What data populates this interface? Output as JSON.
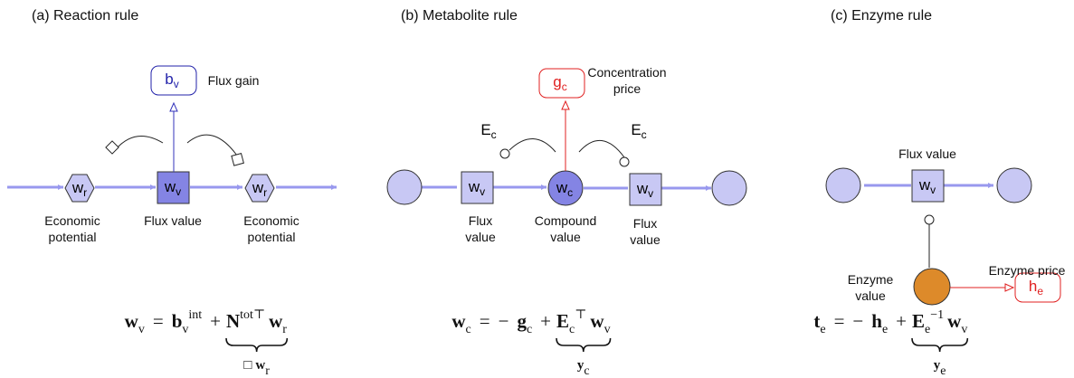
{
  "panels": [
    {
      "title": "(a) Reaction rule",
      "nodes": [
        {
          "main": "w",
          "sub": "r"
        },
        {
          "main": "w",
          "sub": "v"
        },
        {
          "main": "w",
          "sub": "r"
        },
        {
          "main": "b",
          "sub": "v"
        }
      ],
      "labels": [
        [
          "Flux gain"
        ],
        [
          "Economic",
          "potential"
        ],
        [
          "Flux value"
        ],
        [
          "Economic",
          "potential"
        ]
      ],
      "formula": {
        "terms": [
          {
            "text": "w",
            "sub": "v"
          },
          {
            "text": "="
          },
          {
            "text": "b",
            "sub": "v",
            "sup": "int"
          },
          {
            "text": "+"
          }
        ],
        "braced": [
          {
            "text": "N",
            "sup": "tot⊤"
          },
          {
            "text": "w",
            "sub": "r"
          }
        ],
        "below": [
          {
            "text": "□"
          },
          {
            "text": "w",
            "sub": "r"
          }
        ]
      }
    },
    {
      "title": "(b) Metabolite rule",
      "nodes": [
        {
          "main": "g",
          "sub": "c"
        },
        {
          "main": "E",
          "sub": "c"
        },
        {
          "main": "E",
          "sub": "c"
        },
        {
          "main": "w",
          "sub": "v"
        },
        {
          "main": "w",
          "sub": "c"
        },
        {
          "main": "w",
          "sub": "v"
        }
      ],
      "labels": [
        [
          "Concentration",
          "price"
        ],
        [
          "Flux",
          "value"
        ],
        [
          "Compound",
          "value"
        ],
        [
          "Flux",
          "value"
        ]
      ],
      "formula": {
        "terms": [
          {
            "text": "w",
            "sub": "c"
          },
          {
            "text": "="
          },
          {
            "text": "−"
          },
          {
            "text": "g",
            "sub": "c"
          },
          {
            "text": "+"
          }
        ],
        "braced": [
          {
            "text": "E",
            "sub": "c",
            "sup": "⊤"
          },
          {
            "text": "w",
            "sub": "v"
          }
        ],
        "below": [
          {
            "text": "y",
            "sub": "c"
          }
        ]
      }
    },
    {
      "title": "(c) Enzyme rule",
      "nodes": [
        {
          "main": "w",
          "sub": "v"
        },
        {
          "main": "h",
          "sub": "e"
        }
      ],
      "labels": [
        [
          "Flux value"
        ],
        [
          "Enzyme",
          "value"
        ],
        [
          "Enzyme price"
        ]
      ],
      "formula": {
        "terms": [
          {
            "text": "t",
            "sub": "e"
          },
          {
            "text": "="
          },
          {
            "text": "−"
          },
          {
            "text": "h",
            "sub": "e"
          },
          {
            "text": "+"
          }
        ],
        "braced": [
          {
            "text": "E",
            "sub": "e",
            "sup": "−1"
          },
          {
            "text": "w",
            "sub": "v"
          }
        ],
        "below": [
          {
            "text": "y",
            "sub": "e"
          }
        ]
      }
    }
  ]
}
